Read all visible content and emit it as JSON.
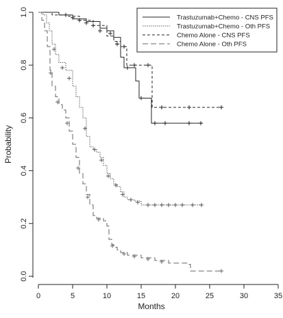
{
  "chart_data": {
    "type": "line",
    "title": "",
    "xlabel": "Months",
    "ylabel": "Probability",
    "xlim": [
      0,
      35
    ],
    "ylim": [
      0,
      1
    ],
    "x_ticks": [
      "0",
      "5",
      "10",
      "15",
      "20",
      "25",
      "30",
      "35"
    ],
    "y_ticks": [
      "0.0",
      "0.2",
      "0.4",
      "0.6",
      "0.8",
      "1.0"
    ],
    "grid": false,
    "legend_position": "top-right",
    "series": [
      {
        "name": "Trastuzumab+Chemo - CNS PFS",
        "dash": "solid",
        "color": "#222222",
        "points": [
          [
            0,
            1.0
          ],
          [
            3,
            0.99
          ],
          [
            5,
            0.975
          ],
          [
            7,
            0.965
          ],
          [
            9,
            0.94
          ],
          [
            10,
            0.93
          ],
          [
            11,
            0.905
          ],
          [
            12,
            0.83
          ],
          [
            12.5,
            0.79
          ],
          [
            13.5,
            0.79
          ],
          [
            14.2,
            0.74
          ],
          [
            14.7,
            0.675
          ],
          [
            15.5,
            0.675
          ],
          [
            16.5,
            0.58
          ],
          [
            18,
            0.58
          ],
          [
            20,
            0.58
          ],
          [
            24,
            0.58
          ]
        ],
        "censors": [
          [
            4,
            0.99
          ],
          [
            6,
            0.97
          ],
          [
            8,
            0.95
          ],
          [
            10.5,
            0.92
          ],
          [
            11.5,
            0.88
          ],
          [
            13,
            0.79
          ],
          [
            15,
            0.675
          ],
          [
            17,
            0.58
          ],
          [
            18.5,
            0.58
          ],
          [
            22,
            0.58
          ],
          [
            23.7,
            0.58
          ]
        ]
      },
      {
        "name": "Trastuzumab+Chemo - Oth PFS",
        "dash": "dotted",
        "color": "#555555",
        "points": [
          [
            0,
            1.0
          ],
          [
            0.7,
            0.99
          ],
          [
            1.2,
            0.96
          ],
          [
            1.6,
            0.93
          ],
          [
            2,
            0.88
          ],
          [
            2.5,
            0.84
          ],
          [
            3,
            0.81
          ],
          [
            4,
            0.78
          ],
          [
            5,
            0.72
          ],
          [
            5.5,
            0.68
          ],
          [
            6,
            0.64
          ],
          [
            6.5,
            0.6
          ],
          [
            7,
            0.53
          ],
          [
            7.5,
            0.49
          ],
          [
            8,
            0.48
          ],
          [
            8.5,
            0.47
          ],
          [
            9,
            0.45
          ],
          [
            9.5,
            0.42
          ],
          [
            10,
            0.39
          ],
          [
            10.5,
            0.37
          ],
          [
            11,
            0.35
          ],
          [
            11.5,
            0.34
          ],
          [
            12,
            0.32
          ],
          [
            12.5,
            0.3
          ],
          [
            13,
            0.29
          ],
          [
            14,
            0.285
          ],
          [
            15,
            0.27
          ],
          [
            24,
            0.27
          ]
        ],
        "censors": [
          [
            2.3,
            0.86
          ],
          [
            3.5,
            0.79
          ],
          [
            4.5,
            0.75
          ],
          [
            6.8,
            0.56
          ],
          [
            8.2,
            0.48
          ],
          [
            9.2,
            0.44
          ],
          [
            10.2,
            0.38
          ],
          [
            11.3,
            0.345
          ],
          [
            12.3,
            0.31
          ],
          [
            13.5,
            0.29
          ],
          [
            14.5,
            0.28
          ],
          [
            16,
            0.27
          ],
          [
            17,
            0.27
          ],
          [
            18,
            0.27
          ],
          [
            19,
            0.27
          ],
          [
            20,
            0.27
          ],
          [
            21,
            0.27
          ],
          [
            22.5,
            0.27
          ],
          [
            23.8,
            0.27
          ]
        ]
      },
      {
        "name": "Chemo Alone - CNS PFS",
        "dash": "short-dash",
        "color": "#222222",
        "points": [
          [
            0,
            1.0
          ],
          [
            2,
            0.99
          ],
          [
            4,
            0.985
          ],
          [
            6,
            0.97
          ],
          [
            8,
            0.95
          ],
          [
            10,
            0.91
          ],
          [
            11,
            0.89
          ],
          [
            12,
            0.87
          ],
          [
            12.8,
            0.87
          ],
          [
            12.9,
            0.8
          ],
          [
            16.5,
            0.8
          ],
          [
            16.6,
            0.64
          ],
          [
            20,
            0.64
          ],
          [
            27,
            0.64
          ]
        ],
        "censors": [
          [
            5,
            0.98
          ],
          [
            7,
            0.96
          ],
          [
            9,
            0.93
          ],
          [
            11.5,
            0.88
          ],
          [
            12.5,
            0.87
          ],
          [
            14,
            0.8
          ],
          [
            16,
            0.8
          ],
          [
            18,
            0.64
          ],
          [
            22,
            0.64
          ],
          [
            26.7,
            0.64
          ]
        ]
      },
      {
        "name": "Chemo Alone - Oth PFS",
        "dash": "long-dash",
        "color": "#666666",
        "points": [
          [
            0,
            1.0
          ],
          [
            0.5,
            0.97
          ],
          [
            0.9,
            0.93
          ],
          [
            1.3,
            0.87
          ],
          [
            1.7,
            0.78
          ],
          [
            2,
            0.72
          ],
          [
            2.5,
            0.68
          ],
          [
            3,
            0.65
          ],
          [
            3.5,
            0.63
          ],
          [
            4,
            0.6
          ],
          [
            4.5,
            0.55
          ],
          [
            5,
            0.5
          ],
          [
            5.5,
            0.45
          ],
          [
            6,
            0.39
          ],
          [
            6.5,
            0.35
          ],
          [
            7,
            0.31
          ],
          [
            7.5,
            0.27
          ],
          [
            8,
            0.23
          ],
          [
            8.5,
            0.22
          ],
          [
            9.5,
            0.21
          ],
          [
            10,
            0.19
          ],
          [
            10.3,
            0.14
          ],
          [
            10.7,
            0.12
          ],
          [
            11,
            0.11
          ],
          [
            11.5,
            0.1
          ],
          [
            12,
            0.09
          ],
          [
            13,
            0.08
          ],
          [
            15,
            0.07
          ],
          [
            17,
            0.06
          ],
          [
            19,
            0.05
          ],
          [
            22,
            0.045
          ],
          [
            22.2,
            0.02
          ],
          [
            27,
            0.02
          ]
        ],
        "censors": [
          [
            1.8,
            0.77
          ],
          [
            2.8,
            0.66
          ],
          [
            4.2,
            0.58
          ],
          [
            5.8,
            0.41
          ],
          [
            7.2,
            0.3
          ],
          [
            8.8,
            0.215
          ],
          [
            10.8,
            0.115
          ],
          [
            12.5,
            0.085
          ],
          [
            14,
            0.075
          ],
          [
            16,
            0.065
          ],
          [
            18,
            0.055
          ],
          [
            26.7,
            0.02
          ]
        ]
      }
    ]
  }
}
